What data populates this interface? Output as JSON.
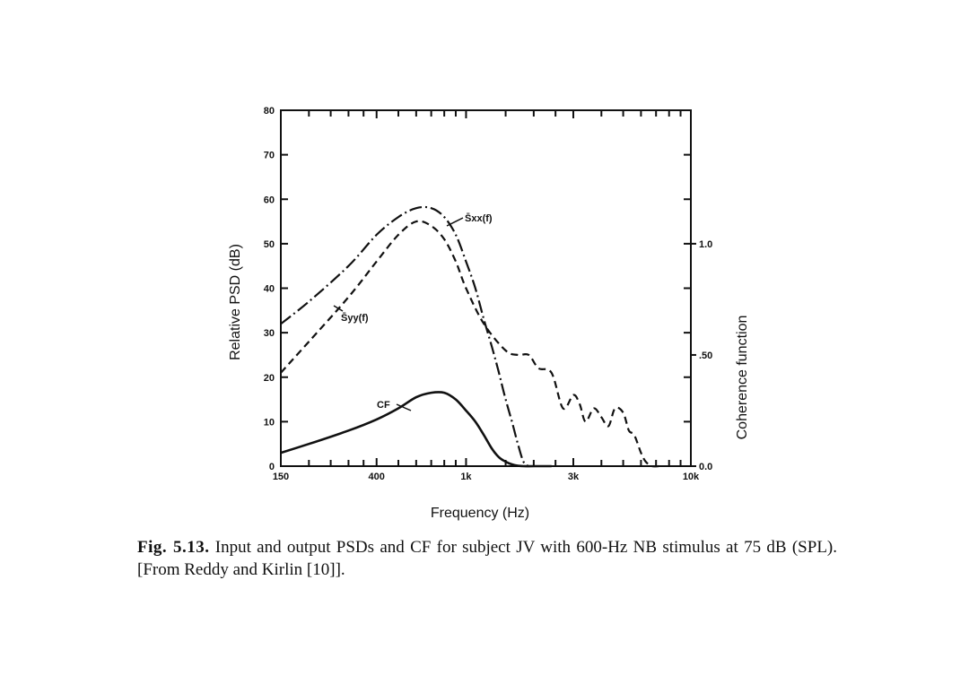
{
  "chart_data": {
    "type": "line",
    "xlabel": "Frequency (Hz)",
    "ylabel": "Relative PSD (dB)",
    "y2label": "Coherence function",
    "x_scale": "log",
    "xlim": [
      150,
      10000
    ],
    "ylim": [
      0,
      80
    ],
    "y2lim": [
      0,
      1.6
    ],
    "x_ticks": [
      {
        "value": 150,
        "label": "150"
      },
      {
        "value": 400,
        "label": "400"
      },
      {
        "value": 1000,
        "label": "1k"
      },
      {
        "value": 3000,
        "label": "3k"
      },
      {
        "value": 10000,
        "label": "10k"
      }
    ],
    "x_minor_ticks": [
      200,
      250,
      300,
      350,
      500,
      600,
      700,
      800,
      900,
      1500,
      2000,
      2500,
      4000,
      5000,
      6000,
      7000,
      8000,
      9000
    ],
    "y_ticks": [
      {
        "value": 0,
        "label": "0"
      },
      {
        "value": 10,
        "label": "10"
      },
      {
        "value": 20,
        "label": "20"
      },
      {
        "value": 30,
        "label": "30"
      },
      {
        "value": 40,
        "label": "40"
      },
      {
        "value": 50,
        "label": "50"
      },
      {
        "value": 60,
        "label": "60"
      },
      {
        "value": 70,
        "label": "70"
      },
      {
        "value": 80,
        "label": "80"
      }
    ],
    "y2_ticks": [
      {
        "value": 0.0,
        "label": "0.0"
      },
      {
        "value": 0.5,
        "label": ".50"
      },
      {
        "value": 1.0,
        "label": "1.0"
      }
    ],
    "grid": false,
    "series": [
      {
        "name": "S̄xx(f)",
        "style": "dash-dot",
        "x": [
          150,
          200,
          300,
          400,
          500,
          600,
          700,
          800,
          900,
          1000,
          1100,
          1200,
          1300,
          1400,
          1500,
          1600,
          1700,
          1800,
          1900
        ],
        "y": [
          32,
          37,
          45,
          52,
          56,
          58,
          58,
          56,
          52,
          46,
          40,
          33,
          27,
          21,
          15,
          10,
          5,
          1,
          0
        ]
      },
      {
        "name": "S̄yy(f)",
        "style": "dashed",
        "x": [
          150,
          200,
          300,
          400,
          500,
          600,
          700,
          800,
          900,
          1000,
          1200,
          1500,
          1700,
          1900,
          2100,
          2400,
          2700,
          3000,
          3200,
          3400,
          3700,
          4000,
          4300,
          4600,
          5000,
          5300,
          5600,
          6000,
          6300,
          6700,
          7200
        ],
        "y": [
          21,
          28,
          38,
          46,
          52,
          55,
          54,
          51,
          46,
          40,
          32,
          26,
          25,
          25,
          22,
          21,
          13,
          16,
          14,
          10,
          13,
          11,
          9,
          13,
          12,
          8,
          7,
          3,
          1,
          0,
          0
        ]
      }
    ],
    "coherence_series": {
      "name": "CF",
      "style": "solid",
      "axis": "right",
      "x": [
        150,
        200,
        300,
        400,
        500,
        600,
        700,
        800,
        900,
        1000,
        1100,
        1200,
        1300,
        1400,
        1500,
        1600,
        1700,
        1800,
        2000,
        2400
      ],
      "y": [
        0.06,
        0.1,
        0.16,
        0.21,
        0.26,
        0.31,
        0.33,
        0.33,
        0.3,
        0.25,
        0.2,
        0.14,
        0.08,
        0.04,
        0.02,
        0.008,
        0.002,
        0.0,
        0.0,
        0.0
      ]
    },
    "annotations": [
      {
        "text": "S̄xx(f)",
        "target": "S̄xx(f)"
      },
      {
        "text": "S̄yy(f)",
        "target": "S̄yy(f)"
      },
      {
        "text": "CF",
        "target": "CF"
      }
    ]
  },
  "caption": {
    "label": "Fig. 5.13.",
    "text": "Input and output PSDs and CF for subject JV with 600-Hz NB stimulus at 75 dB (SPL). [From Reddy and Kirlin [10]]."
  }
}
